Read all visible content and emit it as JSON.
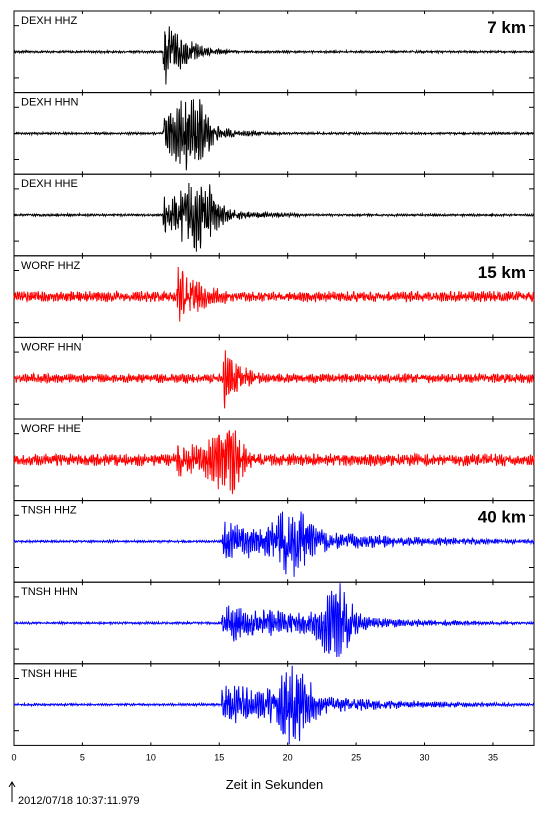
{
  "chart_data": {
    "type": "line",
    "xlabel": "Zeit in Sekunden",
    "xlim": [
      0,
      38
    ],
    "xticks": [
      0,
      5,
      10,
      15,
      20,
      25,
      30,
      35
    ],
    "timestamp": "2012/07/18 10:37:11.979",
    "distances": [
      {
        "label": "7 km",
        "panel": 0
      },
      {
        "label": "15 km",
        "panel": 3
      },
      {
        "label": "40 km",
        "panel": 6
      }
    ],
    "series": [
      {
        "name": "DEXH HHZ",
        "color": "#000000",
        "onset": 10.9,
        "amp": 1.0,
        "noise": 0.03,
        "decay": 1.6,
        "dur": 8
      },
      {
        "name": "DEXH HHN",
        "color": "#000000",
        "onset": 10.9,
        "amp": 0.95,
        "noise": 0.03,
        "decay": 2.0,
        "dur": 9,
        "peak": 13.0
      },
      {
        "name": "DEXH HHE",
        "color": "#000000",
        "onset": 10.9,
        "amp": 0.95,
        "noise": 0.03,
        "decay": 2.4,
        "dur": 10,
        "peak": 13.5
      },
      {
        "name": "WORF HHZ",
        "color": "#ff0000",
        "onset": 11.9,
        "amp": 0.95,
        "noise": 0.14,
        "decay": 2.2,
        "dur": 12
      },
      {
        "name": "WORF HHN",
        "color": "#ff0000",
        "onset": 15.3,
        "amp": 0.85,
        "noise": 0.12,
        "decay": 1.6,
        "dur": 8
      },
      {
        "name": "WORF HHE",
        "color": "#ff0000",
        "onset": 11.9,
        "amp": 0.95,
        "noise": 0.16,
        "decay": 2.5,
        "dur": 11,
        "peak": 15.5
      },
      {
        "name": "TNSH HHZ",
        "color": "#0000ff",
        "onset": 15.2,
        "amp": 1.0,
        "noise": 0.03,
        "decay": 6.0,
        "dur": 23,
        "peak": 20.5
      },
      {
        "name": "TNSH HHN",
        "color": "#0000ff",
        "onset": 15.2,
        "amp": 1.0,
        "noise": 0.03,
        "decay": 5.0,
        "dur": 23,
        "peak": 23.5
      },
      {
        "name": "TNSH HHE",
        "color": "#0000ff",
        "onset": 15.2,
        "amp": 1.0,
        "noise": 0.03,
        "decay": 5.0,
        "dur": 23,
        "peak": 20.5
      }
    ]
  }
}
